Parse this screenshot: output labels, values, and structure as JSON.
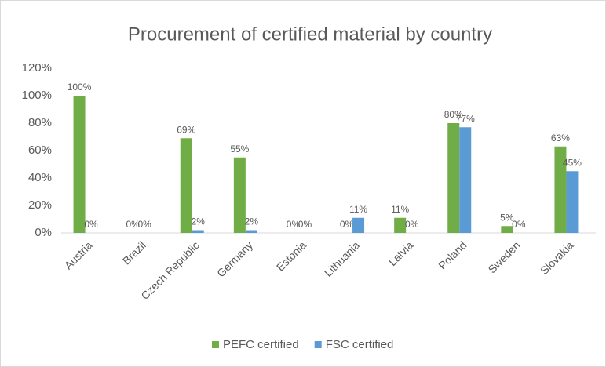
{
  "chart_data": {
    "type": "bar",
    "title": "Procurement of certified material by country",
    "categories": [
      "Austria",
      "Brazil",
      "Czech Republic",
      "Germany",
      "Estonia",
      "Lithuania",
      "Latvia",
      "Poland",
      "Sweden",
      "Slovakia"
    ],
    "series": [
      {
        "name": "PEFC certified",
        "color": "#70ad47",
        "values": [
          100,
          0,
          69,
          55,
          0,
          0,
          11,
          80,
          5,
          63
        ],
        "value_labels": [
          "100%",
          "0%",
          "69%",
          "55%",
          "0%",
          "0%",
          "11%",
          "80%",
          "5%",
          "63%"
        ]
      },
      {
        "name": "FSC certified",
        "color": "#5b9bd5",
        "values": [
          0,
          0,
          2,
          2,
          0,
          11,
          0,
          77,
          0,
          45
        ],
        "value_labels": [
          "0%",
          "0%",
          "2%",
          "2%",
          "0%",
          "11%",
          "0%",
          "77%",
          "0%",
          "45%"
        ]
      }
    ],
    "ylim": [
      0,
      120
    ],
    "yticks": [
      {
        "value": 0,
        "label": "0%"
      },
      {
        "value": 20,
        "label": "20%"
      },
      {
        "value": 40,
        "label": "40%"
      },
      {
        "value": 60,
        "label": "60%"
      },
      {
        "value": 80,
        "label": "80%"
      },
      {
        "value": 100,
        "label": "100%"
      },
      {
        "value": 120,
        "label": "120%"
      }
    ],
    "grid": false,
    "legend": "bottom"
  }
}
